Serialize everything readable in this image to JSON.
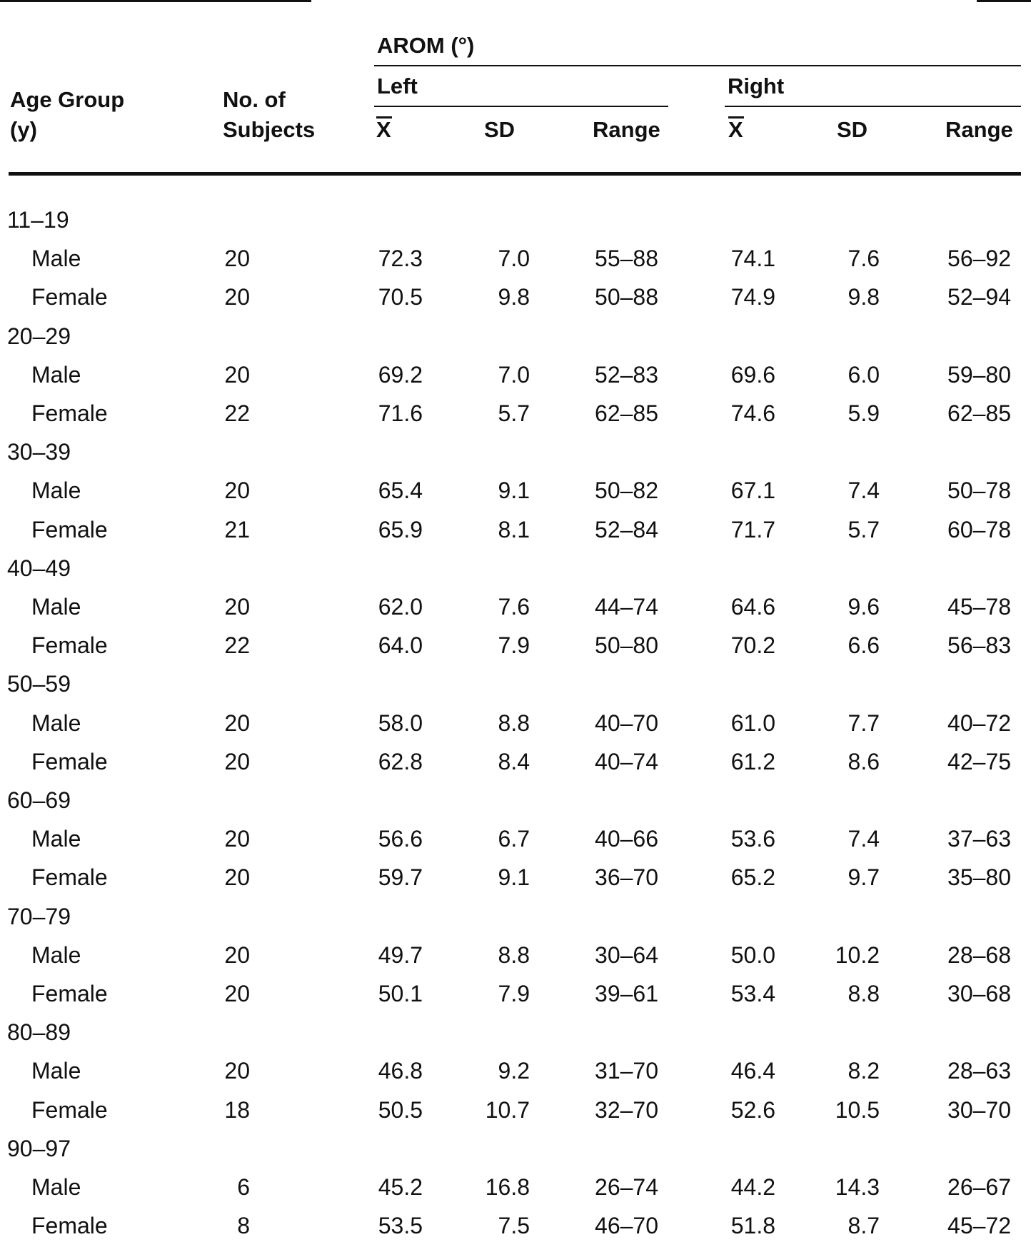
{
  "header": {
    "age_group": "Age Group",
    "age_unit": "(y)",
    "subjects_1": "No. of",
    "subjects_2": "Subjects",
    "arom": "AROM (°)",
    "left": "Left",
    "right": "Right",
    "mean": "X",
    "sd": "SD",
    "range": "Range"
  },
  "groups": [
    {
      "age": "11–19",
      "rows": [
        {
          "sex": "Male",
          "n": "20",
          "lmean": "72.3",
          "lsd": "7.0",
          "lrange": "55–88",
          "rmean": "74.1",
          "rsd": "7.6",
          "rrange": "56–92"
        },
        {
          "sex": "Female",
          "n": "20",
          "lmean": "70.5",
          "lsd": "9.8",
          "lrange": "50–88",
          "rmean": "74.9",
          "rsd": "9.8",
          "rrange": "52–94"
        }
      ]
    },
    {
      "age": "20–29",
      "rows": [
        {
          "sex": "Male",
          "n": "20",
          "lmean": "69.2",
          "lsd": "7.0",
          "lrange": "52–83",
          "rmean": "69.6",
          "rsd": "6.0",
          "rrange": "59–80"
        },
        {
          "sex": "Female",
          "n": "22",
          "lmean": "71.6",
          "lsd": "5.7",
          "lrange": "62–85",
          "rmean": "74.6",
          "rsd": "5.9",
          "rrange": "62–85"
        }
      ]
    },
    {
      "age": "30–39",
      "rows": [
        {
          "sex": "Male",
          "n": "20",
          "lmean": "65.4",
          "lsd": "9.1",
          "lrange": "50–82",
          "rmean": "67.1",
          "rsd": "7.4",
          "rrange": "50–78"
        },
        {
          "sex": "Female",
          "n": "21",
          "lmean": "65.9",
          "lsd": "8.1",
          "lrange": "52–84",
          "rmean": "71.7",
          "rsd": "5.7",
          "rrange": "60–78"
        }
      ]
    },
    {
      "age": "40–49",
      "rows": [
        {
          "sex": "Male",
          "n": "20",
          "lmean": "62.0",
          "lsd": "7.6",
          "lrange": "44–74",
          "rmean": "64.6",
          "rsd": "9.6",
          "rrange": "45–78"
        },
        {
          "sex": "Female",
          "n": "22",
          "lmean": "64.0",
          "lsd": "7.9",
          "lrange": "50–80",
          "rmean": "70.2",
          "rsd": "6.6",
          "rrange": "56–83"
        }
      ]
    },
    {
      "age": "50–59",
      "rows": [
        {
          "sex": "Male",
          "n": "20",
          "lmean": "58.0",
          "lsd": "8.8",
          "lrange": "40–70",
          "rmean": "61.0",
          "rsd": "7.7",
          "rrange": "40–72"
        },
        {
          "sex": "Female",
          "n": "20",
          "lmean": "62.8",
          "lsd": "8.4",
          "lrange": "40–74",
          "rmean": "61.2",
          "rsd": "8.6",
          "rrange": "42–75"
        }
      ]
    },
    {
      "age": "60–69",
      "rows": [
        {
          "sex": "Male",
          "n": "20",
          "lmean": "56.6",
          "lsd": "6.7",
          "lrange": "40–66",
          "rmean": "53.6",
          "rsd": "7.4",
          "rrange": "37–63"
        },
        {
          "sex": "Female",
          "n": "20",
          "lmean": "59.7",
          "lsd": "9.1",
          "lrange": "36–70",
          "rmean": "65.2",
          "rsd": "9.7",
          "rrange": "35–80"
        }
      ]
    },
    {
      "age": "70–79",
      "rows": [
        {
          "sex": "Male",
          "n": "20",
          "lmean": "49.7",
          "lsd": "8.8",
          "lrange": "30–64",
          "rmean": "50.0",
          "rsd": "10.2",
          "rrange": "28–68"
        },
        {
          "sex": "Female",
          "n": "20",
          "lmean": "50.1",
          "lsd": "7.9",
          "lrange": "39–61",
          "rmean": "53.4",
          "rsd": "8.8",
          "rrange": "30–68"
        }
      ]
    },
    {
      "age": "80–89",
      "rows": [
        {
          "sex": "Male",
          "n": "20",
          "lmean": "46.8",
          "lsd": "9.2",
          "lrange": "31–70",
          "rmean": "46.4",
          "rsd": "8.2",
          "rrange": "28–63"
        },
        {
          "sex": "Female",
          "n": "18",
          "lmean": "50.5",
          "lsd": "10.7",
          "lrange": "32–70",
          "rmean": "52.6",
          "rsd": "10.5",
          "rrange": "30–70"
        }
      ]
    },
    {
      "age": "90–97",
      "rows": [
        {
          "sex": "Male",
          "n": "6",
          "lmean": "45.2",
          "lsd": "16.8",
          "lrange": "26–74",
          "rmean": "44.2",
          "rsd": "14.3",
          "rrange": "26–67"
        },
        {
          "sex": "Female",
          "n": "8",
          "lmean": "53.5",
          "lsd": "7.5",
          "lrange": "46–70",
          "rmean": "51.8",
          "rsd": "8.7",
          "rrange": "45–72"
        }
      ]
    }
  ]
}
